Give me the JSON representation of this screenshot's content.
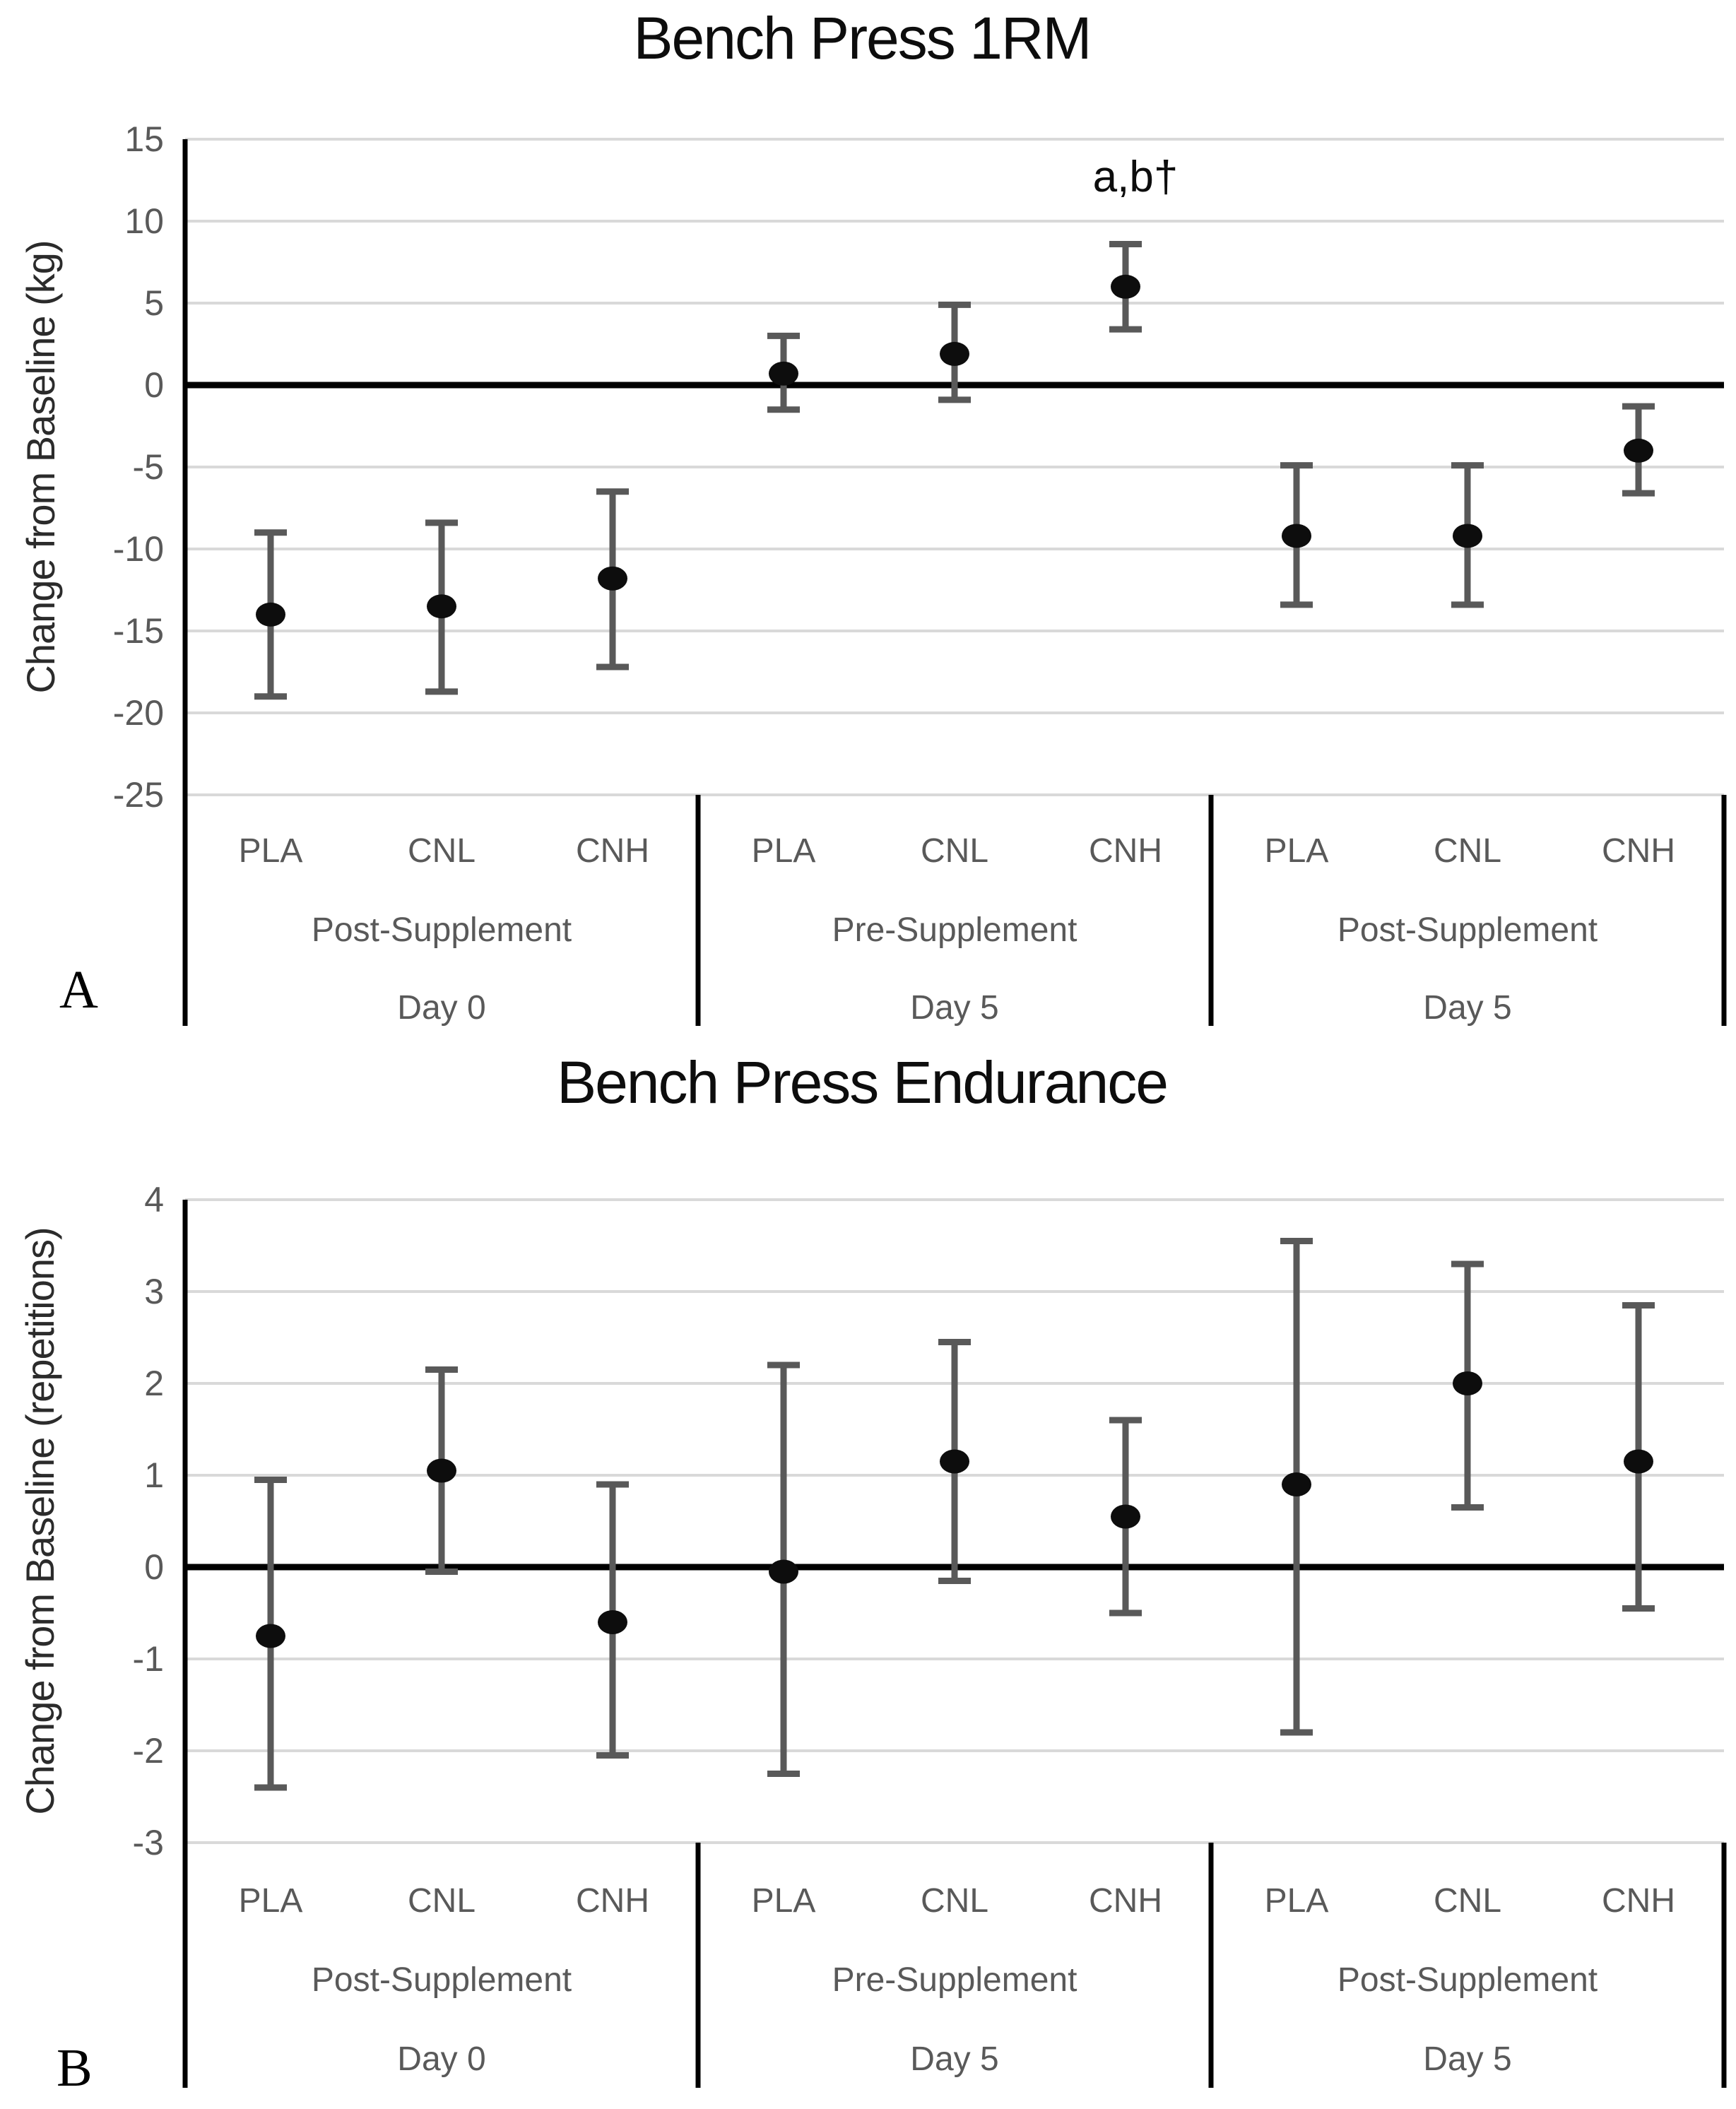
{
  "colors": {
    "background": "#ffffff",
    "gridline": "#d9d9d9",
    "axis_line": "#000000",
    "zero_line": "#000000",
    "divider_line": "#000000",
    "error_bar": "#595959",
    "marker": "#0d0d0d",
    "tick_text": "#595959",
    "category_text": "#595959",
    "title_text": "#0d0d0d"
  },
  "chart_data": [
    {
      "id": "bench-press-1rm",
      "type": "scatter",
      "title": "Bench Press 1RM",
      "ylabel": "Change from Baseline (kg)",
      "xlabel": "",
      "panel_label": "A",
      "ylim": [
        -25,
        15
      ],
      "ytick_step": 5,
      "grid": true,
      "legend": "none",
      "categories_per_group": [
        "PLA",
        "CNL",
        "CNH"
      ],
      "groups": [
        {
          "supplement": "Post-Supplement",
          "day": "Day 0"
        },
        {
          "supplement": "Pre-Supplement",
          "day": "Day 5"
        },
        {
          "supplement": "Post-Supplement",
          "day": "Day 5"
        }
      ],
      "series": [
        {
          "group": "Post-Supplement Day 0",
          "category": "PLA",
          "mean": -14.0,
          "upper": -9.0,
          "lower": -19.0
        },
        {
          "group": "Post-Supplement Day 0",
          "category": "CNL",
          "mean": -13.5,
          "upper": -8.4,
          "lower": -18.7
        },
        {
          "group": "Post-Supplement Day 0",
          "category": "CNH",
          "mean": -11.8,
          "upper": -6.5,
          "lower": -17.2
        },
        {
          "group": "Pre-Supplement Day 5",
          "category": "PLA",
          "mean": 0.7,
          "upper": 3.0,
          "lower": -1.5
        },
        {
          "group": "Pre-Supplement Day 5",
          "category": "CNL",
          "mean": 1.9,
          "upper": 4.9,
          "lower": -0.9
        },
        {
          "group": "Pre-Supplement Day 5",
          "category": "CNH",
          "mean": 6.0,
          "upper": 8.6,
          "lower": 3.4
        },
        {
          "group": "Post-Supplement Day 5",
          "category": "PLA",
          "mean": -9.2,
          "upper": -4.9,
          "lower": -13.4
        },
        {
          "group": "Post-Supplement Day 5",
          "category": "CNL",
          "mean": -9.2,
          "upper": -4.9,
          "lower": -13.4
        },
        {
          "group": "Post-Supplement Day 5",
          "category": "CNH",
          "mean": -4.0,
          "upper": -1.3,
          "lower": -6.6
        }
      ],
      "annotations": [
        {
          "text": "a,b†",
          "point_index": 5,
          "baseline_value": 11.8
        }
      ]
    },
    {
      "id": "bench-press-endurance",
      "type": "scatter",
      "title": "Bench Press Endurance",
      "ylabel": "Change from Baseline (repetitions)",
      "xlabel": "",
      "panel_label": "B",
      "ylim": [
        -3,
        4
      ],
      "ytick_step": 1,
      "grid": true,
      "legend": "none",
      "categories_per_group": [
        "PLA",
        "CNL",
        "CNH"
      ],
      "groups": [
        {
          "supplement": "Post-Supplement",
          "day": "Day 0"
        },
        {
          "supplement": "Pre-Supplement",
          "day": "Day 5"
        },
        {
          "supplement": "Post-Supplement",
          "day": "Day 5"
        }
      ],
      "series": [
        {
          "group": "Post-Supplement Day 0",
          "category": "PLA",
          "mean": -0.75,
          "upper": 0.95,
          "lower": -2.4
        },
        {
          "group": "Post-Supplement Day 0",
          "category": "CNL",
          "mean": 1.05,
          "upper": 2.15,
          "lower": -0.05
        },
        {
          "group": "Post-Supplement Day 0",
          "category": "CNH",
          "mean": -0.6,
          "upper": 0.9,
          "lower": -2.05
        },
        {
          "group": "Pre-Supplement Day 5",
          "category": "PLA",
          "mean": -0.05,
          "upper": 2.2,
          "lower": -2.25
        },
        {
          "group": "Pre-Supplement Day 5",
          "category": "CNL",
          "mean": 1.15,
          "upper": 2.45,
          "lower": -0.15
        },
        {
          "group": "Pre-Supplement Day 5",
          "category": "CNH",
          "mean": 0.55,
          "upper": 1.6,
          "lower": -0.5
        },
        {
          "group": "Post-Supplement Day 5",
          "category": "PLA",
          "mean": 0.9,
          "upper": 3.55,
          "lower": -1.8
        },
        {
          "group": "Post-Supplement Day 5",
          "category": "CNL",
          "mean": 2.0,
          "upper": 3.3,
          "lower": 0.65
        },
        {
          "group": "Post-Supplement Day 5",
          "category": "CNH",
          "mean": 1.15,
          "upper": 2.85,
          "lower": -0.45
        }
      ],
      "annotations": []
    }
  ]
}
